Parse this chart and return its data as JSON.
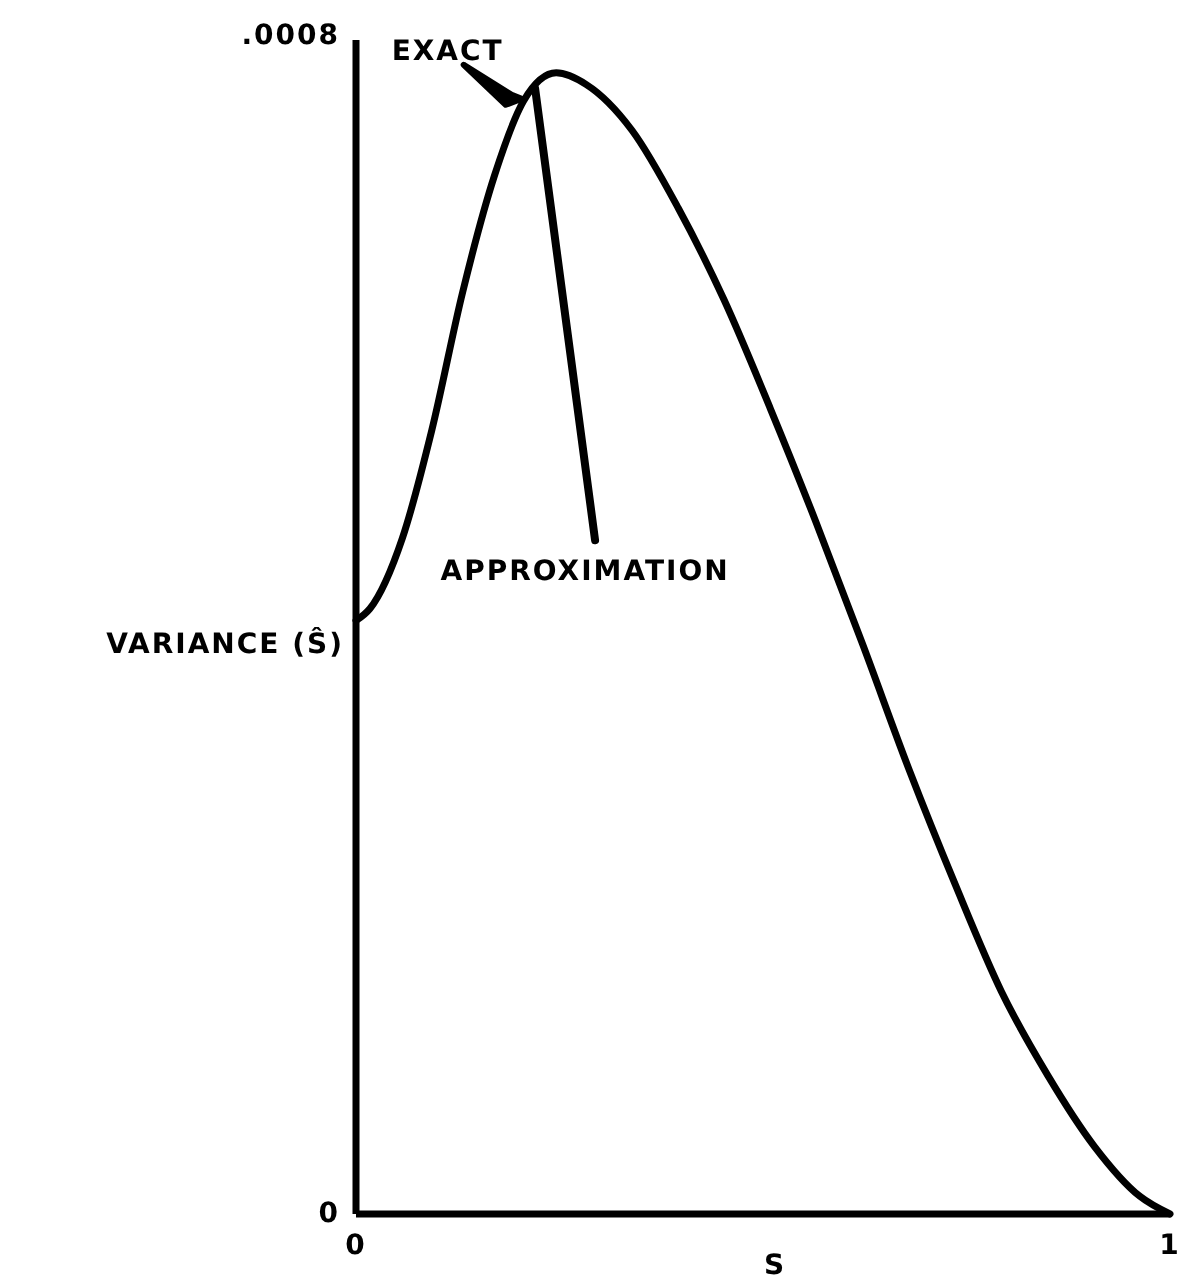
{
  "chart_data": {
    "type": "line",
    "xlabel": "S",
    "ylabel": "VARIANCE (Ŝ)",
    "x": [
      0,
      0.017,
      0.057,
      0.093,
      0.131,
      0.17,
      0.206,
      0.246,
      0.283,
      0.339,
      0.396,
      0.452,
      0.509,
      0.565,
      0.623,
      0.68,
      0.736,
      0.793,
      0.85,
      0.907,
      0.963,
      1
    ],
    "series": [
      {
        "color": "#000000",
        "values": [
          0.000403,
          0.000411,
          0.000459,
          0.000532,
          0.000626,
          0.000705,
          0.000756,
          0.000775,
          0.000767,
          0.000736,
          0.000683,
          0.000621,
          0.000547,
          0.00047,
          0.000386,
          0.000301,
          0.000224,
          0.000151,
          9.4e-05,
          4.6e-05,
          1.2e-05,
          0
        ]
      }
    ],
    "xlim": [
      0,
      1
    ],
    "xticks": [
      0,
      1
    ],
    "ylim": [
      0,
      0.0008
    ],
    "yticks": [
      0,
      {
        "value": 0.0008,
        "label": ".0008"
      }
    ],
    "annotations": [
      {
        "text": "EXACT",
        "x": 0.206,
        "y": 0.000756
      },
      {
        "text": "APPROXIMATION",
        "x": 0.22,
        "y": 0.00077
      }
    ]
  }
}
